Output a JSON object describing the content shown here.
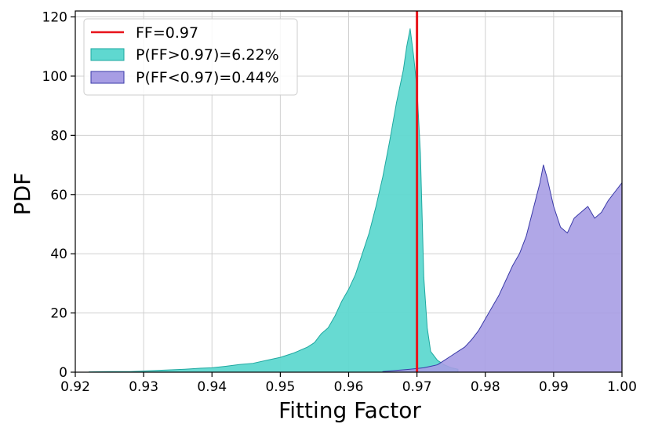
{
  "chart_data": {
    "type": "histogram",
    "title": "",
    "xlabel": "Fitting Factor",
    "ylabel": "PDF",
    "xlim": [
      0.92,
      1.0
    ],
    "ylim": [
      0,
      122
    ],
    "xticks": [
      "0.92",
      "0.93",
      "0.94",
      "0.95",
      "0.96",
      "0.97",
      "0.98",
      "0.99",
      "1.00"
    ],
    "yticks": [
      "0",
      "20",
      "40",
      "60",
      "80",
      "100",
      "120"
    ],
    "grid": true,
    "legend": {
      "placement": "top-left",
      "entries": [
        "FF=0.97",
        "P(FF>0.97)=6.22%",
        "P(FF<0.97)=0.44%"
      ]
    },
    "threshold_line": {
      "x": 0.97,
      "label": "FF=0.97",
      "color": "#e8141b"
    },
    "series": [
      {
        "name": "P(FF>0.97)=6.22%",
        "color": "#5fd8d0",
        "edge_color": "#1fa8a0",
        "points": [
          [
            0.922,
            0.1
          ],
          [
            0.925,
            0.2
          ],
          [
            0.928,
            0.2
          ],
          [
            0.93,
            0.4
          ],
          [
            0.932,
            0.6
          ],
          [
            0.934,
            0.8
          ],
          [
            0.936,
            1.0
          ],
          [
            0.938,
            1.3
          ],
          [
            0.94,
            1.5
          ],
          [
            0.942,
            2.0
          ],
          [
            0.944,
            2.6
          ],
          [
            0.946,
            3.0
          ],
          [
            0.948,
            4.0
          ],
          [
            0.95,
            5.0
          ],
          [
            0.952,
            6.5
          ],
          [
            0.954,
            8.5
          ],
          [
            0.955,
            10
          ],
          [
            0.956,
            13
          ],
          [
            0.957,
            15
          ],
          [
            0.958,
            19
          ],
          [
            0.959,
            24
          ],
          [
            0.96,
            28
          ],
          [
            0.961,
            33
          ],
          [
            0.962,
            40
          ],
          [
            0.963,
            47
          ],
          [
            0.964,
            56
          ],
          [
            0.965,
            66
          ],
          [
            0.966,
            78
          ],
          [
            0.967,
            91
          ],
          [
            0.968,
            102
          ],
          [
            0.9685,
            110
          ],
          [
            0.969,
            116
          ],
          [
            0.9695,
            107
          ],
          [
            0.97,
            96
          ],
          [
            0.9705,
            74
          ],
          [
            0.971,
            32
          ],
          [
            0.9715,
            15
          ],
          [
            0.972,
            7
          ],
          [
            0.973,
            4
          ],
          [
            0.974,
            2.5
          ],
          [
            0.975,
            1.5
          ],
          [
            0.976,
            1.0
          ]
        ]
      },
      {
        "name": "P(FF<0.97)=0.44%",
        "color": "#a79de4",
        "edge_color": "#3a3aa8",
        "points": [
          [
            0.965,
            0.2
          ],
          [
            0.967,
            0.6
          ],
          [
            0.969,
            1.0
          ],
          [
            0.971,
            1.5
          ],
          [
            0.972,
            2.0
          ],
          [
            0.973,
            2.5
          ],
          [
            0.974,
            4.0
          ],
          [
            0.975,
            5.5
          ],
          [
            0.976,
            7.0
          ],
          [
            0.977,
            8.5
          ],
          [
            0.978,
            11
          ],
          [
            0.979,
            14
          ],
          [
            0.98,
            18
          ],
          [
            0.981,
            22
          ],
          [
            0.982,
            26
          ],
          [
            0.983,
            31
          ],
          [
            0.984,
            36
          ],
          [
            0.985,
            40
          ],
          [
            0.986,
            46
          ],
          [
            0.987,
            55
          ],
          [
            0.988,
            64
          ],
          [
            0.9885,
            70
          ],
          [
            0.989,
            66
          ],
          [
            0.99,
            56
          ],
          [
            0.991,
            49
          ],
          [
            0.992,
            47
          ],
          [
            0.993,
            52
          ],
          [
            0.994,
            54
          ],
          [
            0.995,
            56
          ],
          [
            0.996,
            52
          ],
          [
            0.997,
            54
          ],
          [
            0.998,
            58
          ],
          [
            0.999,
            61
          ],
          [
            1.0,
            64
          ]
        ]
      }
    ]
  }
}
